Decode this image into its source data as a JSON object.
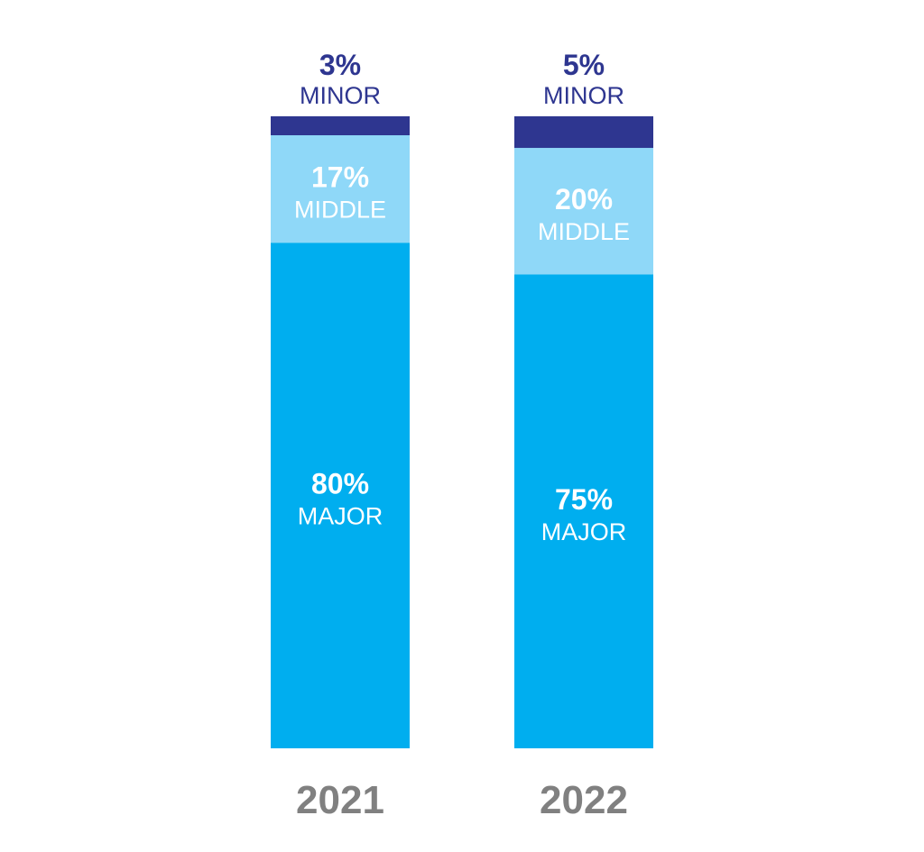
{
  "chart_data": {
    "type": "bar",
    "stacked": true,
    "normalized_percent": true,
    "categories": [
      "2021",
      "2022"
    ],
    "series": [
      {
        "name": "MAJOR",
        "values": [
          80,
          75
        ],
        "labels": [
          "80%",
          "75%"
        ],
        "color": "#00AEEF"
      },
      {
        "name": "MIDDLE",
        "values": [
          17,
          20
        ],
        "labels": [
          "17%",
          "20%"
        ],
        "color": "#8FD8F8"
      },
      {
        "name": "MINOR",
        "values": [
          3,
          5
        ],
        "labels": [
          "3%",
          "5%"
        ],
        "color": "#2E3690"
      }
    ],
    "text_colors": {
      "inside_bar": "#FFFFFF",
      "minor_label": "#2E3690",
      "category_label": "#808080"
    },
    "grid": false,
    "legend": "none"
  }
}
